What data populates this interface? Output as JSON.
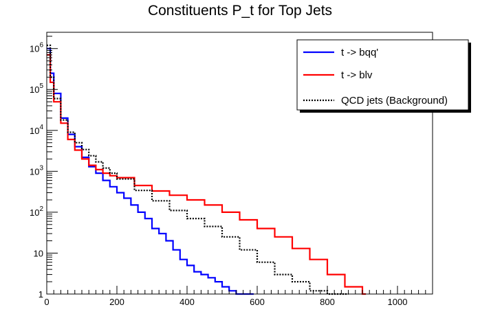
{
  "chart_data": {
    "type": "line",
    "title": "Constituents P_t for Top Jets",
    "xlabel": "",
    "ylabel": "",
    "xlim": [
      0,
      1100
    ],
    "ylim": [
      1,
      2500000
    ],
    "yscale": "log",
    "grid": false,
    "legend_position": "top-right",
    "x_ticks": [
      0,
      200,
      400,
      600,
      800,
      1000
    ],
    "x_tick_labels": [
      "0",
      "200",
      "400",
      "600",
      "800",
      "1000"
    ],
    "y_ticks": [
      1,
      10,
      100,
      1000,
      10000,
      100000,
      1000000
    ],
    "y_tick_labels": [
      {
        "base": "1",
        "exp": ""
      },
      {
        "base": "10",
        "exp": ""
      },
      {
        "base": "10",
        "exp": "2"
      },
      {
        "base": "10",
        "exp": "3"
      },
      {
        "base": "10",
        "exp": "4"
      },
      {
        "base": "10",
        "exp": "5"
      },
      {
        "base": "10",
        "exp": "6"
      }
    ],
    "series": [
      {
        "name": "t -> bqq'",
        "color": "#0000ff",
        "dash": "solid",
        "x": [
          0,
          10,
          20,
          40,
          60,
          80,
          100,
          120,
          140,
          160,
          180,
          200,
          220,
          240,
          260,
          280,
          300,
          320,
          340,
          360,
          380,
          400,
          420,
          440,
          460,
          480,
          500,
          520,
          540,
          560,
          580
        ],
        "y": [
          1000000,
          250000,
          80000,
          20000,
          8000,
          4000,
          2200,
          1300,
          900,
          600,
          420,
          300,
          220,
          150,
          100,
          70,
          40,
          30,
          20,
          12,
          7,
          5,
          3.5,
          3,
          2.5,
          2,
          1.5,
          1.2,
          1,
          1,
          1
        ]
      },
      {
        "name": "t -> blv",
        "color": "#ff0000",
        "dash": "solid",
        "x": [
          0,
          10,
          20,
          40,
          60,
          80,
          100,
          120,
          140,
          160,
          180,
          200,
          250,
          300,
          350,
          400,
          450,
          500,
          550,
          600,
          650,
          700,
          750,
          800,
          850,
          900
        ],
        "y": [
          700000,
          150000,
          50000,
          15000,
          6000,
          3300,
          2000,
          1400,
          1100,
          900,
          780,
          700,
          450,
          330,
          260,
          200,
          150,
          100,
          65,
          40,
          25,
          13,
          7,
          3,
          1.5,
          1
        ]
      },
      {
        "name": "QCD jets (Background)",
        "color": "#000000",
        "dash": "dotted",
        "x": [
          0,
          10,
          20,
          40,
          60,
          80,
          100,
          120,
          140,
          160,
          180,
          200,
          250,
          300,
          350,
          400,
          450,
          500,
          550,
          600,
          650,
          700,
          750,
          800,
          850
        ],
        "y": [
          1200000,
          200000,
          60000,
          18000,
          9000,
          5000,
          3400,
          2400,
          1700,
          1200,
          900,
          650,
          340,
          190,
          110,
          70,
          45,
          25,
          12,
          6,
          3,
          2,
          1.2,
          1,
          1
        ]
      }
    ]
  }
}
